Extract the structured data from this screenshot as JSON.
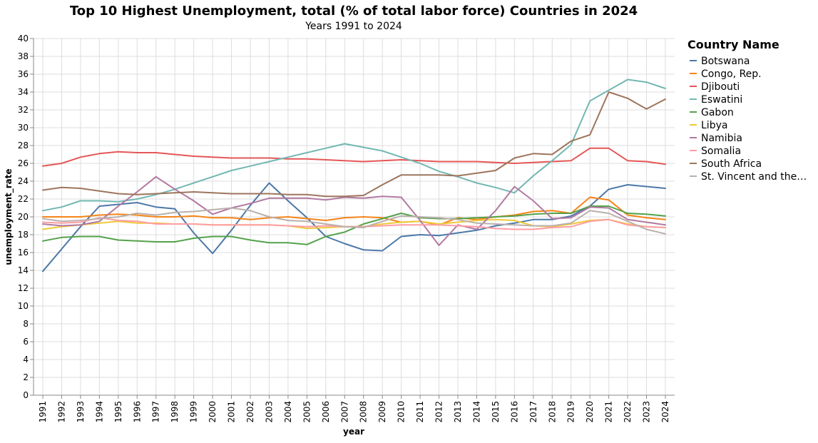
{
  "chart_data": {
    "type": "line",
    "title": "Top 10 Highest Unemployment, total (% of total labor force) Countries in 2024",
    "subtitle": "Years 1991 to 2024",
    "xlabel": "year",
    "ylabel": "unemployment_rate",
    "ylim": [
      0,
      40
    ],
    "yticks": [
      0,
      2,
      4,
      6,
      8,
      10,
      12,
      14,
      16,
      18,
      20,
      22,
      24,
      26,
      28,
      30,
      32,
      34,
      36,
      38,
      40
    ],
    "x": [
      "1991",
      "1992",
      "1993",
      "1994",
      "1995",
      "1996",
      "1997",
      "1998",
      "1999",
      "2000",
      "2001",
      "2002",
      "2003",
      "2004",
      "2005",
      "2006",
      "2007",
      "2008",
      "2009",
      "2010",
      "2011",
      "2012",
      "2013",
      "2014",
      "2015",
      "2016",
      "2017",
      "2018",
      "2019",
      "2020",
      "2021",
      "2022",
      "2023",
      "2024"
    ],
    "grid": true,
    "legend_title": "Country Name",
    "legend_position": "right",
    "series": [
      {
        "name": "Botswana",
        "color": "#4c78a8",
        "values": [
          13.9,
          16.4,
          18.9,
          21.2,
          21.4,
          21.6,
          21.1,
          20.9,
          18.2,
          15.9,
          18.5,
          21.3,
          23.8,
          21.8,
          19.9,
          17.8,
          17.0,
          16.3,
          16.2,
          17.8,
          18.0,
          17.9,
          18.2,
          18.5,
          19.0,
          19.3,
          19.7,
          19.7,
          20.1,
          21.2,
          23.1,
          23.6,
          23.4,
          23.2
        ]
      },
      {
        "name": "Congo, Rep.",
        "color": "#f58518",
        "values": [
          20.0,
          20.0,
          20.0,
          20.2,
          20.3,
          20.2,
          20.0,
          20.0,
          20.1,
          19.9,
          19.9,
          19.7,
          19.9,
          20.0,
          19.8,
          19.6,
          19.9,
          20.0,
          19.9,
          19.4,
          19.5,
          19.1,
          19.9,
          19.7,
          20.0,
          20.2,
          20.6,
          20.7,
          20.4,
          22.2,
          21.9,
          20.2,
          19.9,
          19.7
        ]
      },
      {
        "name": "Djibouti",
        "color": "#e45756",
        "values": [
          25.7,
          26.0,
          26.7,
          27.1,
          27.3,
          27.2,
          27.2,
          27.0,
          26.8,
          26.7,
          26.6,
          26.6,
          26.6,
          26.5,
          26.5,
          26.4,
          26.3,
          26.2,
          26.3,
          26.4,
          26.3,
          26.2,
          26.2,
          26.2,
          26.1,
          26.0,
          26.1,
          26.2,
          26.3,
          27.7,
          27.7,
          26.3,
          26.2,
          25.9
        ]
      },
      {
        "name": "Eswatini",
        "color": "#72b7b2",
        "values": [
          20.7,
          21.1,
          21.8,
          21.8,
          21.7,
          22.0,
          22.5,
          23.1,
          23.8,
          24.5,
          25.2,
          25.7,
          26.2,
          26.7,
          27.2,
          27.7,
          28.2,
          27.8,
          27.4,
          26.7,
          26.0,
          25.1,
          24.5,
          23.8,
          23.3,
          22.7,
          24.6,
          26.3,
          28.1,
          33.0,
          34.2,
          35.4,
          35.1,
          34.4
        ]
      },
      {
        "name": "Gabon",
        "color": "#54a24b",
        "values": [
          17.3,
          17.7,
          17.8,
          17.8,
          17.4,
          17.3,
          17.2,
          17.2,
          17.6,
          17.8,
          17.8,
          17.4,
          17.1,
          17.1,
          16.9,
          17.8,
          18.3,
          19.2,
          19.8,
          20.4,
          19.9,
          19.8,
          19.8,
          19.9,
          20.0,
          20.1,
          20.3,
          20.4,
          20.4,
          21.2,
          21.2,
          20.4,
          20.3,
          20.1
        ]
      },
      {
        "name": "Libya",
        "color": "#eeca3b",
        "values": [
          18.6,
          18.9,
          19.1,
          19.3,
          19.5,
          19.3,
          19.3,
          19.2,
          19.2,
          19.1,
          19.1,
          19.1,
          19.1,
          19.0,
          18.7,
          18.8,
          18.9,
          18.9,
          19.2,
          19.4,
          19.5,
          19.2,
          19.4,
          19.6,
          19.7,
          19.6,
          19.0,
          18.9,
          19.2,
          19.6,
          19.7,
          19.2,
          18.9,
          18.8
        ]
      },
      {
        "name": "Namibia",
        "color": "#b279a2",
        "values": [
          19.2,
          19.0,
          19.1,
          19.5,
          21.2,
          22.8,
          24.5,
          23.1,
          21.8,
          20.3,
          21.0,
          21.5,
          22.1,
          22.1,
          22.1,
          21.9,
          22.2,
          22.1,
          22.3,
          22.2,
          19.6,
          16.8,
          19.1,
          18.6,
          20.7,
          23.4,
          21.8,
          19.8,
          19.9,
          21.1,
          21.0,
          19.7,
          19.4,
          19.1
        ]
      },
      {
        "name": "Somalia",
        "color": "#ff9da6",
        "values": [
          19.4,
          19.3,
          19.4,
          19.9,
          19.6,
          19.5,
          19.2,
          19.2,
          19.2,
          19.1,
          19.1,
          19.1,
          19.1,
          19.0,
          18.9,
          19.0,
          18.9,
          18.9,
          19.0,
          19.1,
          19.1,
          19.1,
          19.0,
          18.9,
          18.7,
          18.6,
          18.6,
          18.8,
          18.9,
          19.5,
          19.7,
          19.1,
          18.9,
          18.8
        ]
      },
      {
        "name": "South Africa",
        "color": "#9d755d",
        "values": [
          23.0,
          23.3,
          23.2,
          22.9,
          22.6,
          22.5,
          22.6,
          22.7,
          22.8,
          22.7,
          22.6,
          22.6,
          22.6,
          22.5,
          22.5,
          22.3,
          22.3,
          22.4,
          23.6,
          24.7,
          24.7,
          24.7,
          24.6,
          24.9,
          25.2,
          26.6,
          27.1,
          27.0,
          28.5,
          29.2,
          34.0,
          33.3,
          32.1,
          33.2
        ]
      },
      {
        "name": "St. Vincent and the Grenadines",
        "color": "#bab0ac",
        "values": [
          19.8,
          19.5,
          19.6,
          19.8,
          20.0,
          20.4,
          20.2,
          20.5,
          20.6,
          20.8,
          21.0,
          20.7,
          20.0,
          19.6,
          19.5,
          19.2,
          18.9,
          18.8,
          19.5,
          20.1,
          20.0,
          19.9,
          19.7,
          19.3,
          19.2,
          19.1,
          19.0,
          19.0,
          19.3,
          20.7,
          20.4,
          19.5,
          18.6,
          18.1
        ]
      }
    ]
  }
}
